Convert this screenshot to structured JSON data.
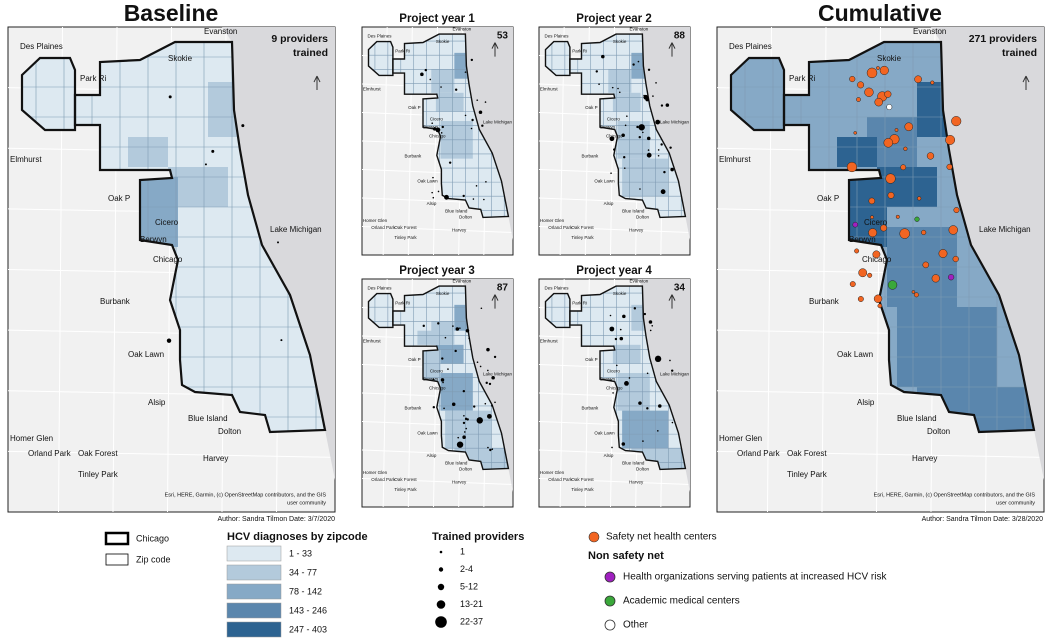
{
  "baseline": {
    "title": "Baseline",
    "count_lines": [
      "9 providers",
      "trained"
    ],
    "author": "Author: Sandra Tilmon Date: 3/7/2020"
  },
  "project_years": [
    {
      "title": "Project year 1",
      "count": 53
    },
    {
      "title": "Project year 2",
      "count": 88
    },
    {
      "title": "Project year 3",
      "count": 87
    },
    {
      "title": "Project year 4",
      "count": 34
    }
  ],
  "cumulative": {
    "title": "Cumulative",
    "count_lines": [
      "271 providers",
      "trained"
    ],
    "author": "Author: Sandra Tilmon Date: 3/28/2020"
  },
  "attribution": [
    "Esri, HERE, Garmin, (c) OpenStreetMap contributors, and the GIS",
    "user community"
  ],
  "places": [
    "Des Plaines",
    "Evanston",
    "Skokie",
    "Park Ri",
    "Elmhurst",
    "Oak P",
    "Cicero",
    "Berwyn",
    "Chicago",
    "Burbank",
    "Oak Lawn",
    "Alsip",
    "Blue Island",
    "Dolton",
    "Homer Glen",
    "Orland Park",
    "Oak Forest",
    "Harvey",
    "Tinley Park",
    "Lake Michigan"
  ],
  "legend": {
    "boundaries": [
      "Chicago",
      "Zip code"
    ],
    "hcv_title": "HCV diagnoses by zipcode",
    "hcv_classes": [
      {
        "label": "1 - 33",
        "color": "#dde9f1"
      },
      {
        "label": "34 - 77",
        "color": "#b3cadc"
      },
      {
        "label": "78 - 142",
        "color": "#86a9c6"
      },
      {
        "label": "143 - 246",
        "color": "#5a86ad"
      },
      {
        "label": "247 - 403",
        "color": "#2d6391"
      }
    ],
    "providers_title": "Trained providers",
    "provider_classes": [
      "1",
      "2-4",
      "5-12",
      "13-21",
      "22-37"
    ],
    "safety_net": {
      "label": "Safety net health centers",
      "color": "#f26522"
    },
    "non_safety_title": "Non safety net",
    "non_safety": [
      {
        "label": "Health organizations serving patients at increased HCV risk",
        "color": "#a020c0"
      },
      {
        "label": "Academic medical centers",
        "color": "#3aa83a"
      },
      {
        "label": "Other",
        "color": "#ffffff"
      }
    ]
  }
}
